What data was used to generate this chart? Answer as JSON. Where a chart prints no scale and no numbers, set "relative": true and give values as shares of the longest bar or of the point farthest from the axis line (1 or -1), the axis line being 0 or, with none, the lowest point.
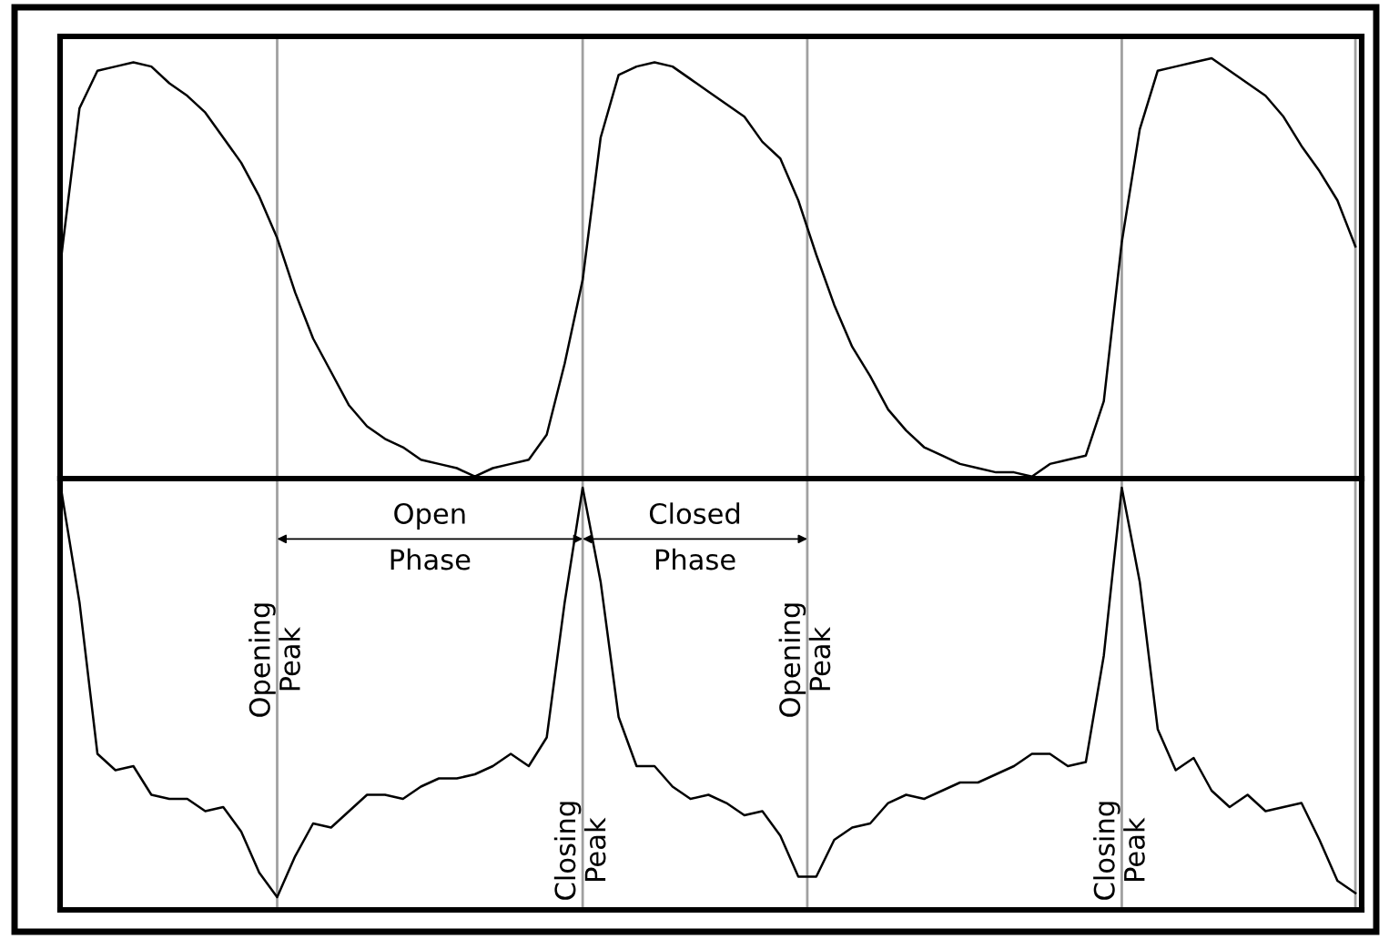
{
  "chart_data": [
    {
      "type": "line",
      "relative": true,
      "tick_labels": false,
      "grid": "x",
      "legend": false,
      "categories": [
        null,
        null,
        null,
        null,
        null,
        null,
        null,
        null,
        null,
        null,
        null,
        null,
        null,
        null,
        null,
        null,
        null,
        null,
        null,
        null,
        null,
        null,
        null,
        null,
        null,
        null,
        null,
        null,
        null,
        null,
        null,
        null,
        null,
        null,
        null,
        null,
        null,
        null,
        null,
        null,
        null,
        null,
        null,
        null,
        null,
        null,
        null,
        null,
        null,
        null,
        null,
        null,
        null,
        null,
        null,
        null,
        null,
        null,
        null,
        null,
        null,
        null,
        null,
        null,
        null,
        null,
        null,
        null,
        null,
        null,
        null,
        null,
        null
      ],
      "series": [
        {
          "color": "#000000",
          "values": [
            0.53,
            0.88,
            0.97,
            0.98,
            0.99,
            0.98,
            0.94,
            0.91,
            0.87,
            0.81,
            0.75,
            0.67,
            0.57,
            0.44,
            0.33,
            0.25,
            0.17,
            0.12,
            0.09,
            0.07,
            0.04,
            0.03,
            0.02,
            0.0,
            0.02,
            0.03,
            0.04,
            0.1,
            0.27,
            0.47,
            0.81,
            0.96,
            0.98,
            0.99,
            0.98,
            0.95,
            0.92,
            0.89,
            0.86,
            0.8,
            0.76,
            0.66,
            0.53,
            0.41,
            0.31,
            0.24,
            0.16,
            0.11,
            0.07,
            0.05,
            0.03,
            0.02,
            0.01,
            0.01,
            0.0,
            0.03,
            0.04,
            0.05,
            0.18,
            0.56,
            0.83,
            0.97,
            0.98,
            0.99,
            1.0,
            0.97,
            0.94,
            0.91,
            0.86,
            0.79,
            0.73,
            0.66,
            0.55
          ]
        }
      ]
    },
    {
      "type": "line",
      "relative": true,
      "tick_labels": false,
      "grid": "x",
      "legend": false,
      "categories": [
        null,
        null,
        null,
        null,
        null,
        null,
        null,
        null,
        null,
        null,
        null,
        null,
        null,
        null,
        null,
        null,
        null,
        null,
        null,
        null,
        null,
        null,
        null,
        null,
        null,
        null,
        null,
        null,
        null,
        null,
        null,
        null,
        null,
        null,
        null,
        null,
        null,
        null,
        null,
        null,
        null,
        null,
        null,
        null,
        null,
        null,
        null,
        null,
        null,
        null,
        null,
        null,
        null,
        null,
        null,
        null,
        null,
        null,
        null,
        null,
        null,
        null,
        null,
        null,
        null,
        null,
        null,
        null,
        null,
        null,
        null,
        null,
        null
      ],
      "series": [
        {
          "color": "#000000",
          "values": [
            0.99,
            0.72,
            0.35,
            0.31,
            0.32,
            0.25,
            0.24,
            0.24,
            0.21,
            0.22,
            0.16,
            0.06,
            0.0,
            0.1,
            0.18,
            0.17,
            0.21,
            0.25,
            0.25,
            0.24,
            0.27,
            0.29,
            0.29,
            0.3,
            0.32,
            0.35,
            0.32,
            0.39,
            0.72,
            1.0,
            0.77,
            0.44,
            0.32,
            0.32,
            0.27,
            0.24,
            0.25,
            0.23,
            0.2,
            0.21,
            0.15,
            0.05,
            0.05,
            0.14,
            0.17,
            0.18,
            0.23,
            0.25,
            0.24,
            0.26,
            0.28,
            0.28,
            0.3,
            0.32,
            0.35,
            0.35,
            0.32,
            0.33,
            0.59,
            1.0,
            0.77,
            0.41,
            0.31,
            0.34,
            0.26,
            0.22,
            0.25,
            0.21,
            0.22,
            0.23,
            0.14,
            0.04,
            0.01
          ]
        }
      ],
      "annotations": [
        "Opening\nPeak",
        "Closing\nPeak",
        "Opening\nPeak",
        "Closing\nPeak",
        "Open\nPhase",
        "Closed\nPhase"
      ]
    }
  ]
}
